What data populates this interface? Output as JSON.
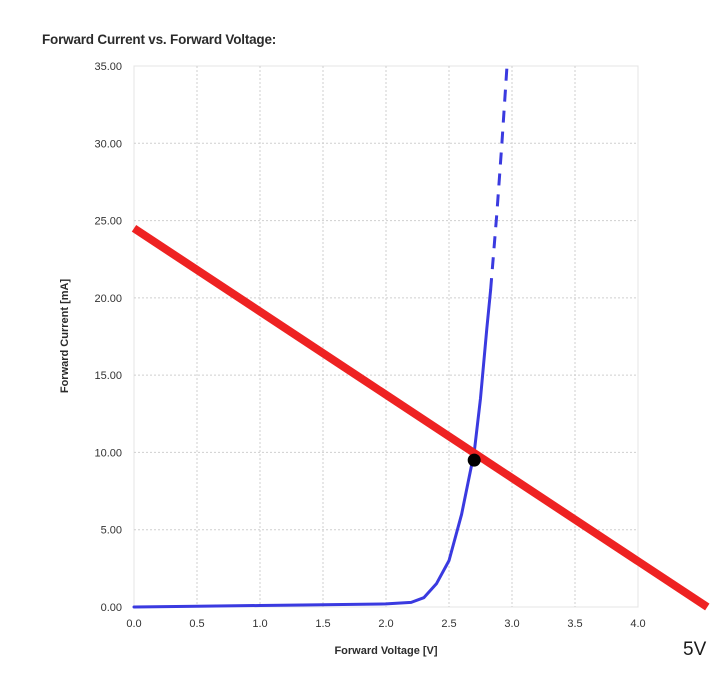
{
  "chart_data": {
    "type": "line",
    "title": "Forward Current vs. Forward Voltage:",
    "xlabel": "Forward Voltage [V]",
    "ylabel": "Forward Current [mA]",
    "xlim": [
      0,
      4.0
    ],
    "ylim": [
      0,
      35
    ],
    "x_ticks": [
      "0.0",
      "0.5",
      "1.0",
      "1.5",
      "2.0",
      "2.5",
      "3.0",
      "3.5",
      "4.0"
    ],
    "y_ticks": [
      "0.00",
      "5.00",
      "10.00",
      "15.00",
      "20.00",
      "25.00",
      "30.00",
      "35.00"
    ],
    "grid": true,
    "series": [
      {
        "color": "#3a3ae0",
        "style": "solid",
        "x": [
          0.0,
          0.5,
          1.0,
          1.5,
          2.0,
          2.2,
          2.3,
          2.4,
          2.5,
          2.6,
          2.65,
          2.7,
          2.75,
          2.8,
          2.83
        ],
        "y": [
          0.0,
          0.05,
          0.1,
          0.15,
          0.2,
          0.3,
          0.6,
          1.5,
          3.0,
          6.0,
          8.0,
          10.0,
          13.5,
          18.0,
          20.5
        ]
      },
      {
        "color": "#3a3ae0",
        "style": "dashed",
        "x": [
          2.83,
          2.88,
          2.92,
          2.96
        ],
        "y": [
          20.5,
          25.5,
          30.0,
          35.0
        ]
      },
      {
        "color": "#ee2222",
        "style": "solid",
        "x": [
          0.0,
          4.55
        ],
        "y": [
          24.5,
          0.0
        ]
      }
    ],
    "points": [
      {
        "x": 2.7,
        "y": 9.5,
        "color": "#000000"
      }
    ],
    "annotations": [
      {
        "text": "5V"
      }
    ]
  }
}
